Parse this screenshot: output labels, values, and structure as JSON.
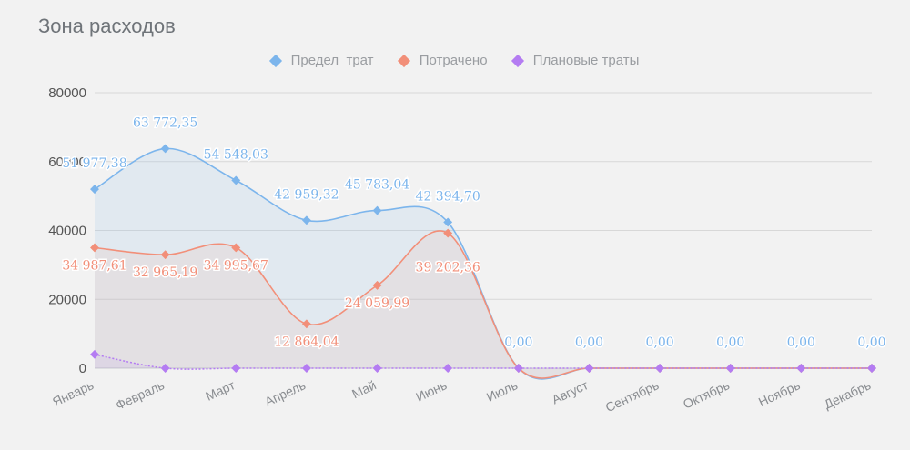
{
  "chart_data": {
    "type": "area",
    "title": "Зона расходов",
    "categories": [
      "Январь",
      "Февраль",
      "Март",
      "Апрель",
      "Май",
      "Июнь",
      "Июль",
      "Август",
      "Сентябрь",
      "Октябрь",
      "Ноябрь",
      "Декабрь"
    ],
    "ylim": [
      0,
      80000
    ],
    "yticks": [
      0,
      20000,
      40000,
      60000,
      80000
    ],
    "grid": true,
    "legend_position": "top",
    "series": [
      {
        "name": "Предел  трат",
        "color": "#7cb5ec",
        "values": [
          51977.38,
          63772.35,
          54548.03,
          42959.32,
          45783.04,
          42394.7,
          0,
          0,
          0,
          0,
          0,
          0
        ],
        "labels": [
          "51 977,38",
          "63 772,35",
          "54 548,03",
          "42 959,32",
          "45 783,04",
          "42 394,70",
          "0,00",
          "0,00",
          "0,00",
          "0,00",
          "0,00",
          "0,00"
        ]
      },
      {
        "name": "Потрачено",
        "color": "#f28f79",
        "values": [
          34987.61,
          32965.19,
          34995.67,
          12864.04,
          24059.99,
          39202.36,
          0,
          0,
          0,
          0,
          0,
          0
        ],
        "labels": [
          "34 987,61",
          "32 965,19",
          "34 995,67",
          "12 864,04",
          "24 059,99",
          "39 202,36",
          "",
          "",
          "",
          "",
          "",
          ""
        ]
      },
      {
        "name": "Плановые траты",
        "color": "#b47cf2",
        "values": [
          4000,
          0,
          0,
          0,
          0,
          0,
          0,
          0,
          0,
          0,
          0,
          0
        ],
        "labels": [
          "",
          "",
          "",
          "",
          "",
          "",
          "",
          "",
          "",
          "",
          "",
          ""
        ]
      }
    ]
  }
}
